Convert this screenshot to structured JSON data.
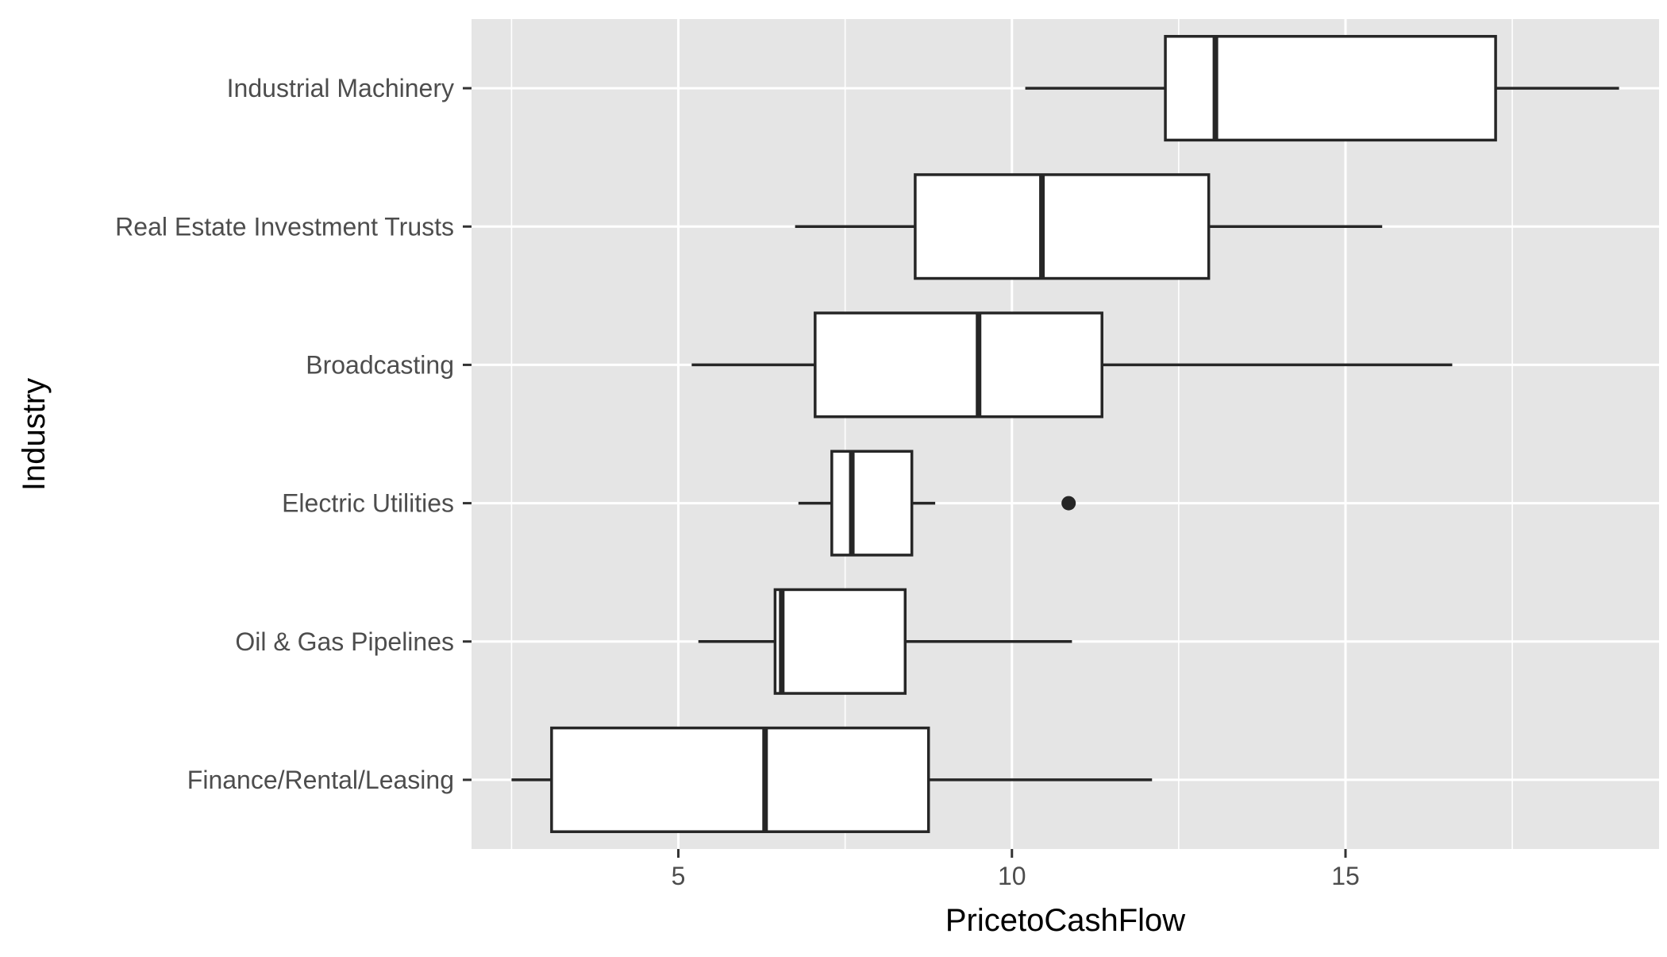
{
  "chart_data": {
    "type": "boxplot",
    "orientation": "horizontal",
    "xlabel": "PricetoCashFlow",
    "ylabel": "Industry",
    "xlim": [
      1.9,
      19.7
    ],
    "xticks": [
      5,
      10,
      15
    ],
    "xtick_labels": [
      "5",
      "10",
      "15"
    ],
    "x_minor_gridlines": [
      2.5,
      7.5,
      12.5,
      17.5
    ],
    "grid": true,
    "legend": "none",
    "colors": {
      "panel_background": "#e5e5e5",
      "gridline": "#ffffff",
      "box_fill": "#ffffff",
      "box_stroke": "#262626",
      "tick_label": "#4d4d4d",
      "axis_title": "#000000"
    },
    "categories": [
      "Finance/Rental/Leasing",
      "Oil & Gas Pipelines",
      "Electric Utilities",
      "Broadcasting",
      "Real Estate Investment Trusts",
      "Industrial Machinery"
    ],
    "boxes": [
      {
        "category": "Finance/Rental/Leasing",
        "whisker_low": 2.5,
        "q1": 3.1,
        "median": 6.3,
        "q3": 8.75,
        "whisker_high": 12.1,
        "outliers": []
      },
      {
        "category": "Oil & Gas Pipelines",
        "whisker_low": 5.3,
        "q1": 6.45,
        "median": 6.55,
        "q3": 8.4,
        "whisker_high": 10.9,
        "outliers": []
      },
      {
        "category": "Electric Utilities",
        "whisker_low": 6.8,
        "q1": 7.3,
        "median": 7.6,
        "q3": 8.5,
        "whisker_high": 8.85,
        "outliers": [
          10.85
        ]
      },
      {
        "category": "Broadcasting",
        "whisker_low": 5.2,
        "q1": 7.05,
        "median": 9.5,
        "q3": 11.35,
        "whisker_high": 16.6,
        "outliers": []
      },
      {
        "category": "Real Estate Investment Trusts",
        "whisker_low": 6.75,
        "q1": 8.55,
        "median": 10.45,
        "q3": 12.95,
        "whisker_high": 15.55,
        "outliers": []
      },
      {
        "category": "Industrial Machinery",
        "whisker_low": 10.2,
        "q1": 12.3,
        "median": 13.05,
        "q3": 17.25,
        "whisker_high": 19.1,
        "outliers": []
      }
    ]
  }
}
